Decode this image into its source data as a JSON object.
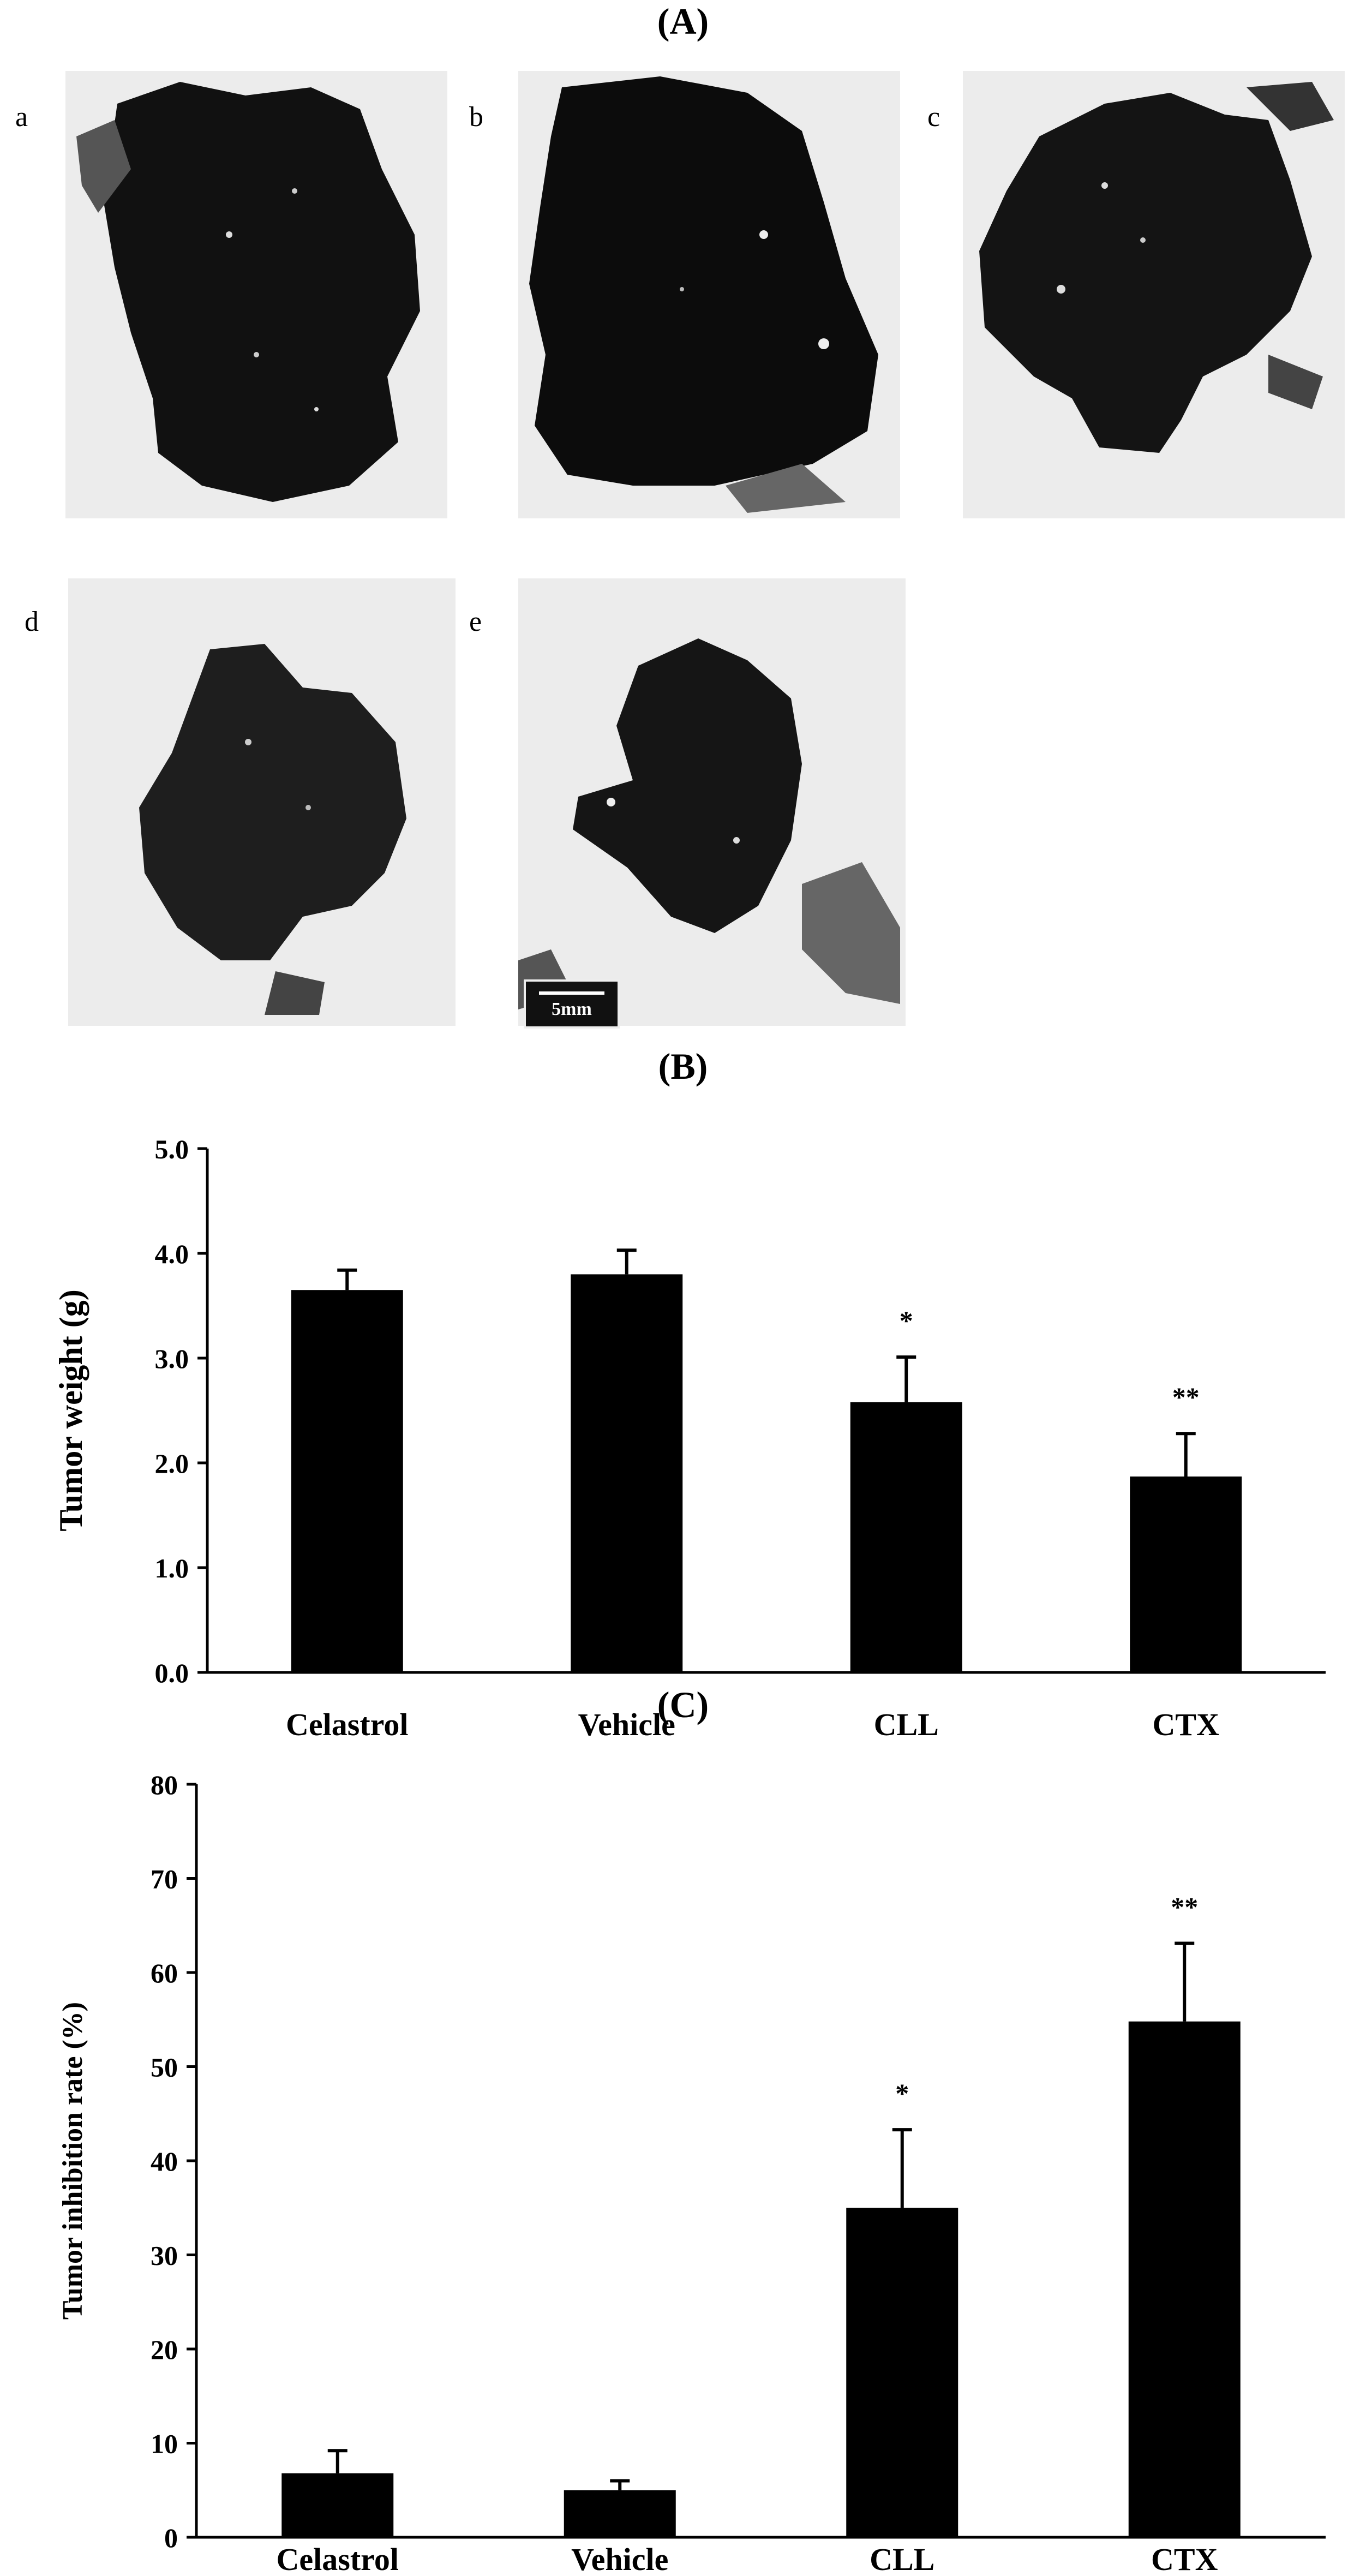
{
  "panel_titles": {
    "A": "(A)",
    "B": "(B)",
    "C": "(C)"
  },
  "photos": [
    {
      "letter": "a"
    },
    {
      "letter": "b"
    },
    {
      "letter": "c"
    },
    {
      "letter": "d"
    },
    {
      "letter": "e"
    }
  ],
  "scale_bar": {
    "label": "5mm"
  },
  "chart_data": [
    {
      "type": "bar",
      "title": "",
      "categories": [
        "Celastrol",
        "Vehicle",
        "CLL",
        "CTX"
      ],
      "values": [
        3.65,
        3.8,
        2.58,
        1.87
      ],
      "errors": [
        0.19,
        0.23,
        0.43,
        0.41
      ],
      "annotations": [
        "",
        "",
        "*",
        "**"
      ],
      "xlabel": "",
      "ylabel": "Tumor weight (g)",
      "ylim": [
        0,
        5
      ],
      "yticks": [
        "0.0",
        "1.0",
        "2.0",
        "3.0",
        "4.0",
        "5.0"
      ],
      "bar_color": "#000000",
      "grid": false
    },
    {
      "type": "bar",
      "title": "",
      "categories": [
        "Celastrol",
        "Vehicle",
        "CLL",
        "CTX"
      ],
      "values": [
        6.8,
        5.0,
        35.0,
        54.8
      ],
      "errors": [
        2.4,
        1.0,
        8.3,
        8.3
      ],
      "annotations": [
        "",
        "",
        "*",
        "**"
      ],
      "xlabel": "",
      "ylabel": "Tumor inhibition rate (%)",
      "ylim": [
        0,
        80
      ],
      "yticks": [
        "0",
        "10",
        "20",
        "30",
        "40",
        "50",
        "60",
        "70",
        "80"
      ],
      "bar_color": "#000000",
      "grid": false
    }
  ]
}
